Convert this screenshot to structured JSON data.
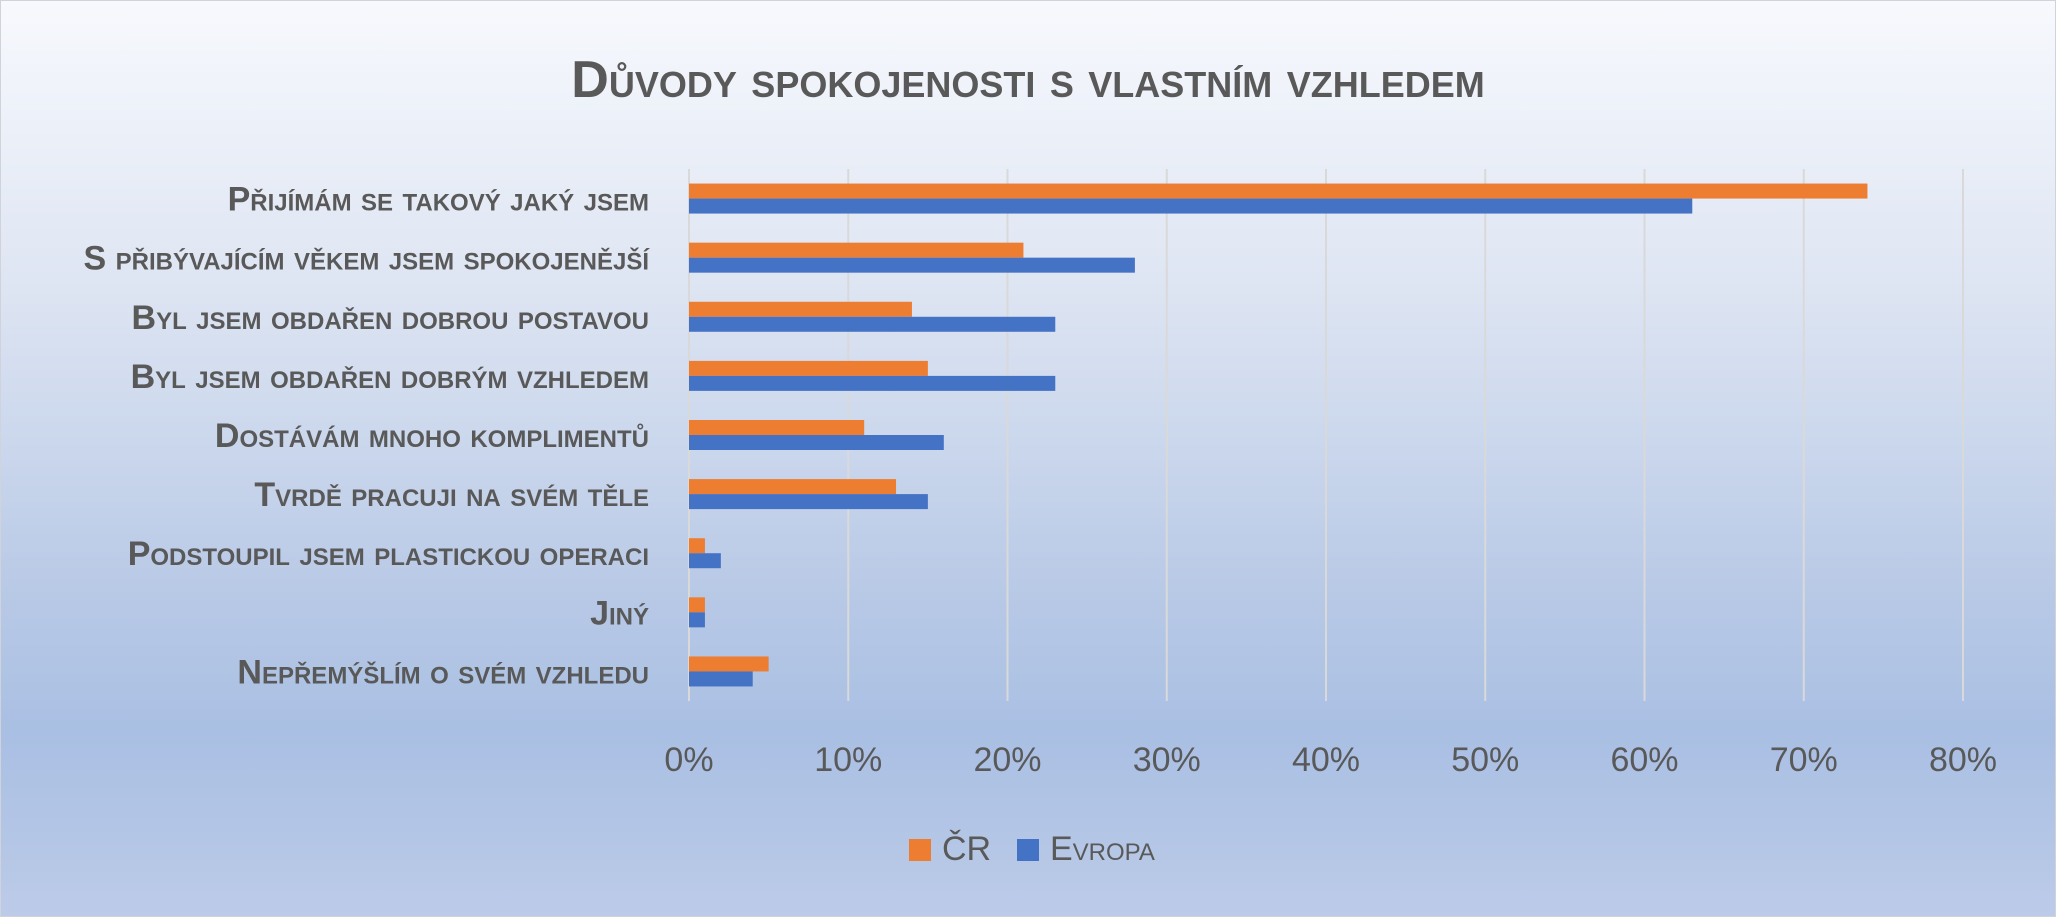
{
  "chart_data": {
    "type": "bar",
    "orientation": "horizontal",
    "title": "Důvody spokojenosti s vlastním vzhledem",
    "categories": [
      "Přijímám se takový jaký jsem",
      "S přibývajícím věkem jsem spokojenější",
      "Byl jsem obdařen dobrou postavou",
      "Byl jsem obdařen dobrým vzhledem",
      "Dostávám mnoho komplimentů",
      "Tvrdě pracuji na svém těle",
      "Podstoupil jsem plastickou operaci",
      "Jiný",
      "Nepřemýšlím o svém vzhledu"
    ],
    "series": [
      {
        "name": "ČR",
        "color": "#ED7D31",
        "values": [
          74,
          21,
          14,
          15,
          11,
          13,
          1,
          1,
          5
        ]
      },
      {
        "name": "Evropa",
        "color": "#4472C4",
        "values": [
          63,
          28,
          23,
          23,
          16,
          15,
          2,
          1,
          4
        ]
      }
    ],
    "xlim": [
      0,
      80
    ],
    "x_ticks": [
      0,
      10,
      20,
      30,
      40,
      50,
      60,
      70,
      80
    ],
    "x_tick_labels": [
      "0%",
      "10%",
      "20%",
      "30%",
      "40%",
      "50%",
      "60%",
      "70%",
      "80%"
    ],
    "xlabel": "",
    "ylabel": "",
    "grid": "vertical",
    "legend_position": "bottom"
  }
}
